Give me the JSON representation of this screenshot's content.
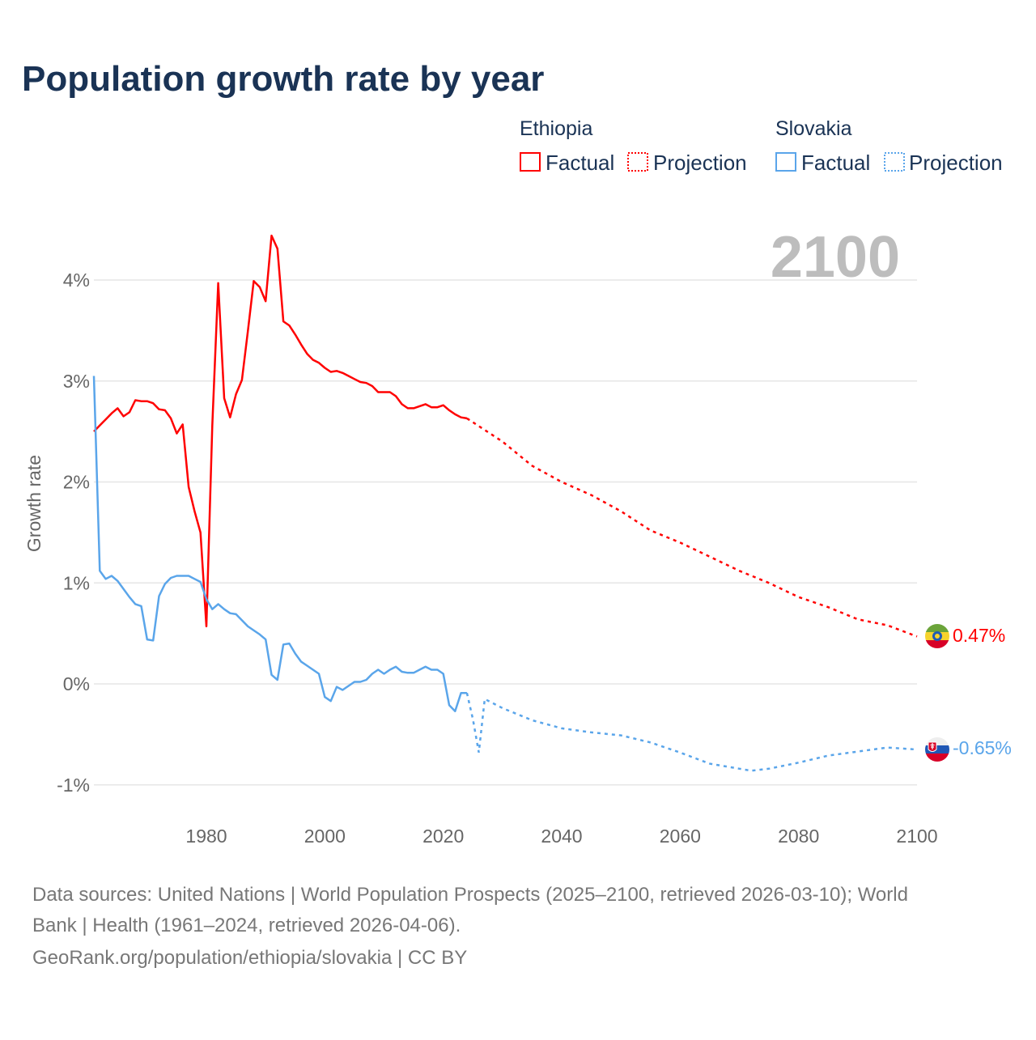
{
  "chart_data": {
    "type": "line",
    "title": "Population growth rate by year",
    "xlabel": "",
    "ylabel": "Growth rate",
    "xlim": [
      1961,
      2100
    ],
    "ylim": [
      -1.3,
      4.6
    ],
    "x_ticks": [
      1980,
      2000,
      2020,
      2040,
      2060,
      2080,
      2100
    ],
    "x_tick_labels": [
      "1980",
      "2000",
      "2020",
      "2040",
      "2060",
      "2080",
      "2100"
    ],
    "y_ticks": [
      -1,
      0,
      1,
      2,
      3,
      4
    ],
    "y_tick_labels": [
      "-1%",
      "0%",
      "1%",
      "2%",
      "3%",
      "4%"
    ],
    "grid": true,
    "current_year_label": "2100",
    "legend": {
      "placement": "top-right",
      "groups": [
        {
          "country": "Ethiopia",
          "factual": "Factual",
          "projection": "Projection",
          "color": "#ff0000"
        },
        {
          "country": "Slovakia",
          "factual": "Factual",
          "projection": "Projection",
          "color": "#5aa5ea"
        }
      ]
    },
    "series": [
      {
        "name": "Ethiopia",
        "color": "#ff0000",
        "end_label": "0.47%",
        "factual": {
          "x": [
            1961,
            1962,
            1963,
            1964,
            1965,
            1966,
            1967,
            1968,
            1969,
            1970,
            1971,
            1972,
            1973,
            1974,
            1975,
            1976,
            1977,
            1978,
            1979,
            1980,
            1981,
            1982,
            1983,
            1984,
            1985,
            1986,
            1987,
            1988,
            1989,
            1990,
            1991,
            1992,
            1993,
            1994,
            1995,
            1996,
            1997,
            1998,
            1999,
            2000,
            2001,
            2002,
            2003,
            2004,
            2005,
            2006,
            2007,
            2008,
            2009,
            2010,
            2011,
            2012,
            2013,
            2014,
            2015,
            2016,
            2017,
            2018,
            2019,
            2020,
            2021,
            2022,
            2023,
            2024
          ],
          "y": [
            2.5,
            2.56,
            2.62,
            2.68,
            2.73,
            2.65,
            2.69,
            2.81,
            2.8,
            2.8,
            2.78,
            2.72,
            2.71,
            2.63,
            2.48,
            2.57,
            1.95,
            1.71,
            1.5,
            0.57,
            2.56,
            3.97,
            2.83,
            2.64,
            2.87,
            3.01,
            3.49,
            3.99,
            3.93,
            3.79,
            4.44,
            4.31,
            3.59,
            3.55,
            3.46,
            3.36,
            3.27,
            3.21,
            3.18,
            3.13,
            3.09,
            3.1,
            3.08,
            3.05,
            3.02,
            2.99,
            2.98,
            2.95,
            2.89,
            2.89,
            2.89,
            2.85,
            2.77,
            2.73,
            2.73,
            2.75,
            2.77,
            2.74,
            2.74,
            2.76,
            2.71,
            2.67,
            2.64,
            2.63
          ]
        },
        "projection": {
          "x": [
            2024,
            2030,
            2035,
            2040,
            2045,
            2050,
            2055,
            2060,
            2065,
            2070,
            2075,
            2080,
            2085,
            2090,
            2095,
            2100
          ],
          "y": [
            2.63,
            2.4,
            2.16,
            2.0,
            1.87,
            1.71,
            1.52,
            1.4,
            1.26,
            1.12,
            1.0,
            0.86,
            0.76,
            0.64,
            0.58,
            0.47
          ]
        }
      },
      {
        "name": "Slovakia",
        "color": "#5aa5ea",
        "end_label": "-0.65%",
        "factual": {
          "x": [
            1961,
            1962,
            1963,
            1964,
            1965,
            1966,
            1967,
            1968,
            1969,
            1970,
            1971,
            1972,
            1973,
            1974,
            1975,
            1976,
            1977,
            1978,
            1979,
            1980,
            1981,
            1982,
            1983,
            1984,
            1985,
            1986,
            1987,
            1988,
            1989,
            1990,
            1991,
            1992,
            1993,
            1994,
            1995,
            1996,
            1997,
            1998,
            1999,
            2000,
            2001,
            2002,
            2003,
            2004,
            2005,
            2006,
            2007,
            2008,
            2009,
            2010,
            2011,
            2012,
            2013,
            2014,
            2015,
            2016,
            2017,
            2018,
            2019,
            2020,
            2021,
            2022,
            2023,
            2024
          ],
          "y": [
            3.05,
            1.12,
            1.04,
            1.07,
            1.02,
            0.94,
            0.86,
            0.79,
            0.77,
            0.44,
            0.43,
            0.87,
            0.99,
            1.05,
            1.07,
            1.07,
            1.07,
            1.04,
            1.01,
            0.84,
            0.74,
            0.79,
            0.74,
            0.7,
            0.69,
            0.63,
            0.57,
            0.53,
            0.49,
            0.44,
            0.09,
            0.04,
            0.39,
            0.4,
            0.3,
            0.22,
            0.18,
            0.14,
            0.1,
            -0.13,
            -0.17,
            -0.03,
            -0.06,
            -0.02,
            0.02,
            0.02,
            0.04,
            0.1,
            0.14,
            0.1,
            0.14,
            0.17,
            0.12,
            0.11,
            0.11,
            0.14,
            0.17,
            0.14,
            0.14,
            0.1,
            -0.21,
            -0.27,
            -0.09,
            -0.09
          ]
        },
        "projection": {
          "x": [
            2024,
            2025,
            2026,
            2027,
            2030,
            2035,
            2040,
            2045,
            2050,
            2055,
            2060,
            2065,
            2070,
            2072,
            2075,
            2080,
            2085,
            2090,
            2095,
            2100
          ],
          "y": [
            -0.09,
            -0.35,
            -0.68,
            -0.15,
            -0.24,
            -0.36,
            -0.44,
            -0.48,
            -0.51,
            -0.58,
            -0.68,
            -0.79,
            -0.84,
            -0.86,
            -0.84,
            -0.78,
            -0.71,
            -0.67,
            -0.63,
            -0.65
          ]
        }
      }
    ]
  },
  "footer": {
    "line1": "Data sources: United Nations | World Population Prospects (2025–2100, retrieved 2026-03-10); World",
    "line2": "Bank | Health (1961–2024, retrieved 2026-04-06).",
    "line3": "GeoRank.org/population/ethiopia/slovakia | CC BY"
  }
}
